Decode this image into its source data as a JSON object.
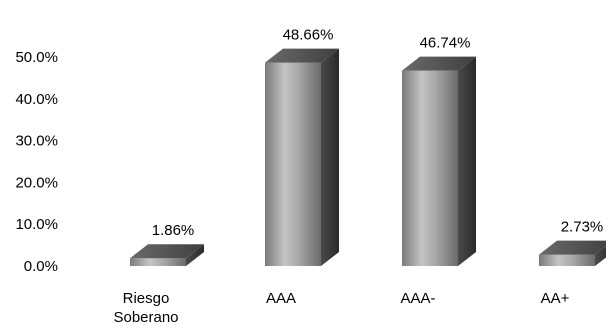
{
  "chart_data": {
    "type": "bar",
    "style": "3d-cylinder-like rectangular bars with gray gradient",
    "categories": [
      "Riesgo Soberano",
      "AAA",
      "AAA-",
      "AA+"
    ],
    "category_labels": [
      [
        "Riesgo",
        "Soberano"
      ],
      [
        "AAA"
      ],
      [
        "AAA-"
      ],
      [
        "AA+"
      ]
    ],
    "values": [
      1.86,
      48.66,
      46.74,
      2.73
    ],
    "data_labels": [
      "1.86%",
      "48.66%",
      "46.74%",
      "2.73%"
    ],
    "y_ticks": [
      0,
      10,
      20,
      30,
      40,
      50
    ],
    "y_tick_labels": [
      "0.0%",
      "10.0%",
      "20.0%",
      "30.0%",
      "40.0%",
      "50.0%"
    ],
    "ylim": [
      0,
      50
    ],
    "title": "",
    "xlabel": "",
    "ylabel": "",
    "grid": false,
    "legend": "none",
    "colors": {
      "bar_light": "#bfbfbf",
      "bar_mid": "#8c8c8c",
      "bar_dark": "#3a3a3a",
      "bar_top": "#595959",
      "text": "#000000"
    }
  }
}
